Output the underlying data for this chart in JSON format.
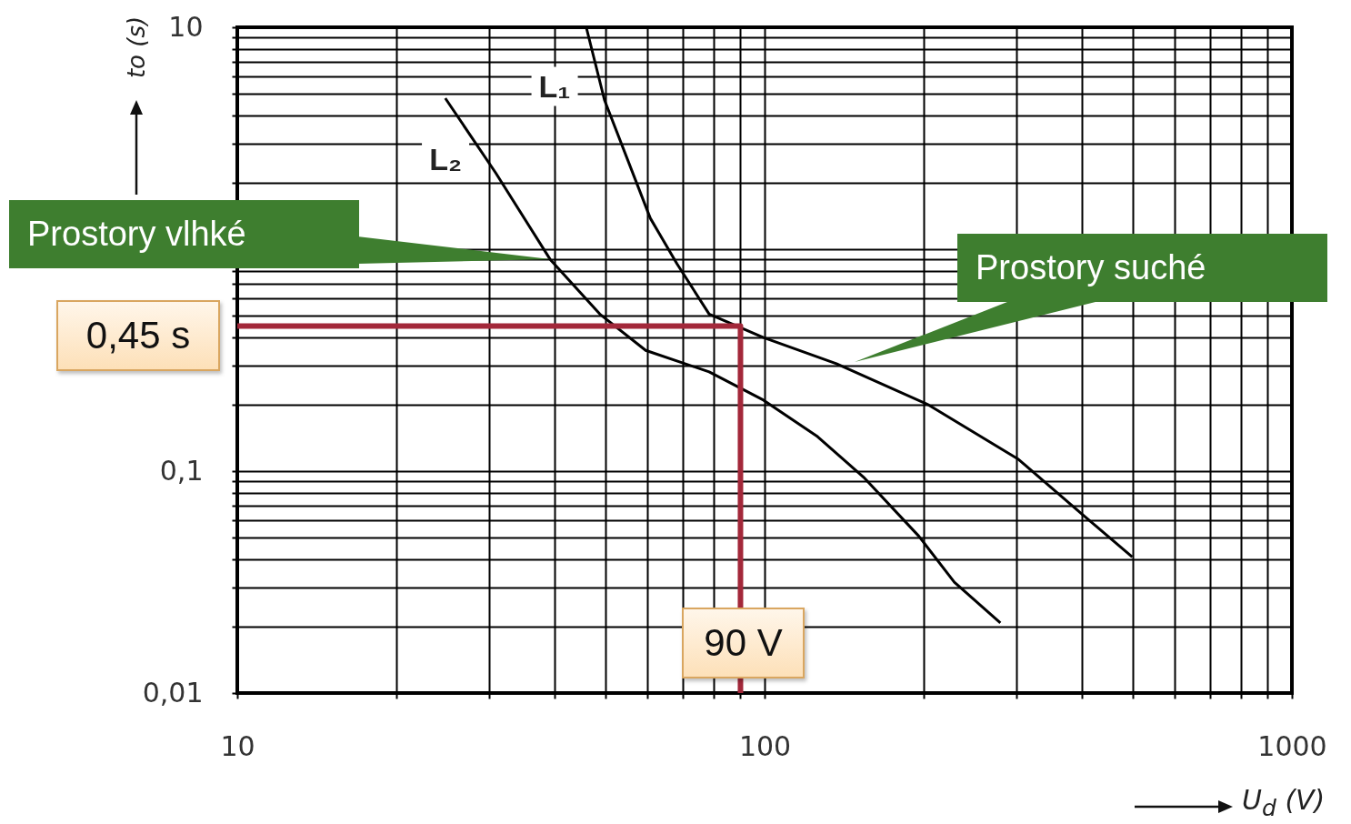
{
  "chart_data": {
    "type": "line",
    "xlabel": "U$_{d}$ (V)",
    "ylabel": "to (s)",
    "log": "xy",
    "grid": true,
    "legend": false,
    "marker": "none",
    "line_style": "solid",
    "xlim": [
      10,
      1000
    ],
    "ylim": [
      0.01,
      10
    ],
    "xticks": [
      10,
      {
        "value": 20,
        "label": null
      },
      {
        "value": 30,
        "label": null
      },
      {
        "value": 40,
        "label": null
      },
      {
        "value": 50,
        "label": null
      },
      {
        "value": 60,
        "label": null
      },
      {
        "value": 70,
        "label": null
      },
      {
        "value": 80,
        "label": null
      },
      {
        "value": 90,
        "label": null
      },
      100,
      {
        "value": 200,
        "label": null
      },
      {
        "value": 300,
        "label": null
      },
      {
        "value": 400,
        "label": null
      },
      {
        "value": 500,
        "label": null
      },
      {
        "value": 600,
        "label": null
      },
      {
        "value": 700,
        "label": null
      },
      {
        "value": 800,
        "label": null
      },
      {
        "value": 900,
        "label": null
      },
      1000
    ],
    "yticks": [
      {
        "value": 0.01,
        "label": "0,01"
      },
      {
        "value": 0.02,
        "label": null
      },
      {
        "value": 0.03,
        "label": null
      },
      {
        "value": 0.04,
        "label": null
      },
      {
        "value": 0.05,
        "label": null
      },
      {
        "value": 0.06,
        "label": null
      },
      {
        "value": 0.07,
        "label": null
      },
      {
        "value": 0.08,
        "label": null
      },
      {
        "value": 0.09,
        "label": null
      },
      {
        "value": 0.1,
        "label": "0,1"
      },
      {
        "value": 0.2,
        "label": null
      },
      {
        "value": 0.3,
        "label": null
      },
      {
        "value": 0.4,
        "label": null
      },
      {
        "value": 0.5,
        "label": null
      },
      {
        "value": 0.6,
        "label": null
      },
      {
        "value": 0.7,
        "label": null
      },
      {
        "value": 0.8,
        "label": null
      },
      {
        "value": 0.9,
        "label": null
      },
      {
        "value": 1,
        "label": null
      },
      {
        "value": 2,
        "label": null
      },
      {
        "value": 3,
        "label": null
      },
      {
        "value": 4,
        "label": null
      },
      {
        "value": 5,
        "label": null
      },
      {
        "value": 6,
        "label": null
      },
      {
        "value": 7,
        "label": null
      },
      {
        "value": 8,
        "label": null
      },
      {
        "value": 9,
        "label": null
      },
      10
    ],
    "series": [
      {
        "name": "L₁",
        "color": "#000000",
        "x": [
          45.9,
          49.7,
          60.7,
          68.2,
          78.5,
          99.5,
          136.8,
          203.6,
          303,
          400,
          498
        ],
        "values": [
          10,
          4.7,
          1.38,
          0.86,
          0.51,
          0.4,
          0.305,
          0.2,
          0.113,
          0.064,
          0.041
        ]
      },
      {
        "name": "L₂",
        "color": "#000000",
        "x": [
          24.8,
          30.9,
          39.2,
          48.7,
          59.5,
          78.5,
          99.5,
          126,
          154,
          196,
          229,
          280
        ],
        "values": [
          4.79,
          2.21,
          0.9,
          0.51,
          0.35,
          0.28,
          0.209,
          0.143,
          0.094,
          0.051,
          0.0316,
          0.0207
        ]
      },
      {
        "color": "#a3283a",
        "x": [
          10,
          90,
          90
        ],
        "values": [
          0.45,
          0.45,
          0.01
        ]
      }
    ],
    "annotations": [
      "Prostory vlhké",
      "Prostory suché",
      "0,45 s",
      "90 V"
    ]
  }
}
